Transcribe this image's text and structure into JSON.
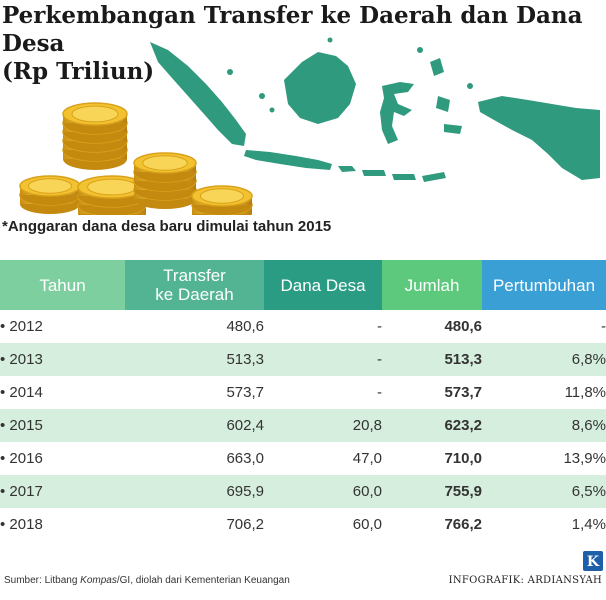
{
  "header": {
    "title_line1": "Perkembangan Transfer ke Daerah dan Dana Desa",
    "title_line2": "(Rp Triliun)",
    "note": "*Anggaran dana desa baru dimulai tahun 2015"
  },
  "table": {
    "columns": [
      "Tahun",
      "Transfer ke Daerah",
      "Dana Desa",
      "Jumlah",
      "Pertumbuhan"
    ],
    "column_lines": {
      "transfer_line1": "Transfer",
      "transfer_line2": "ke Daerah"
    },
    "rows": [
      {
        "tahun": "• 2012",
        "transfer": "480,6",
        "dana": "-",
        "jumlah": "480,6",
        "pertumbuhan": "-"
      },
      {
        "tahun": "• 2013",
        "transfer": "513,3",
        "dana": "-",
        "jumlah": "513,3",
        "pertumbuhan": "6,8%"
      },
      {
        "tahun": "• 2014",
        "transfer": "573,7",
        "dana": "-",
        "jumlah": "573,7",
        "pertumbuhan": "11,8%"
      },
      {
        "tahun": "• 2015",
        "transfer": "602,4",
        "dana": "20,8",
        "jumlah": "623,2",
        "pertumbuhan": "8,6%"
      },
      {
        "tahun": "• 2016",
        "transfer": "663,0",
        "dana": "47,0",
        "jumlah": "710,0",
        "pertumbuhan": "13,9%"
      },
      {
        "tahun": "• 2017",
        "transfer": "695,9",
        "dana": "60,0",
        "jumlah": "755,9",
        "pertumbuhan": "6,5%"
      },
      {
        "tahun": "• 2018",
        "transfer": "706,2",
        "dana": "60,0",
        "jumlah": "766,2",
        "pertumbuhan": "1,4%"
      }
    ]
  },
  "footer": {
    "source_prefix": "Sumber: Litbang ",
    "source_italic": "Kompas",
    "source_suffix": "/GI, diolah dari Kementerian Keuangan",
    "credit": "INFOGRAFIK: ARDIANSYAH",
    "logo_letter": "K"
  },
  "colors": {
    "map": "#2f9a7e",
    "coin": "#f2c230",
    "header_tahun": "#7dcfa0",
    "header_transfer": "#52b492",
    "header_dana": "#2a9c83",
    "header_jumlah": "#5cc97c",
    "header_pertumbuhan": "#3a9fd4",
    "row_alt": "#d6eedd",
    "jumlah_text": "#1f9a57"
  },
  "chart_data": {
    "type": "table",
    "title": "Perkembangan Transfer ke Daerah dan Dana Desa (Rp Triliun)",
    "columns": [
      "Tahun",
      "Transfer ke Daerah",
      "Dana Desa",
      "Jumlah",
      "Pertumbuhan"
    ],
    "rows": [
      [
        2012,
        480.6,
        null,
        480.6,
        null
      ],
      [
        2013,
        513.3,
        null,
        513.3,
        6.8
      ],
      [
        2014,
        573.7,
        null,
        573.7,
        11.8
      ],
      [
        2015,
        602.4,
        20.8,
        623.2,
        8.6
      ],
      [
        2016,
        663.0,
        47.0,
        710.0,
        13.9
      ],
      [
        2017,
        695.9,
        60.0,
        755.9,
        6.5
      ],
      [
        2018,
        706.2,
        60.0,
        766.2,
        1.4
      ]
    ]
  }
}
